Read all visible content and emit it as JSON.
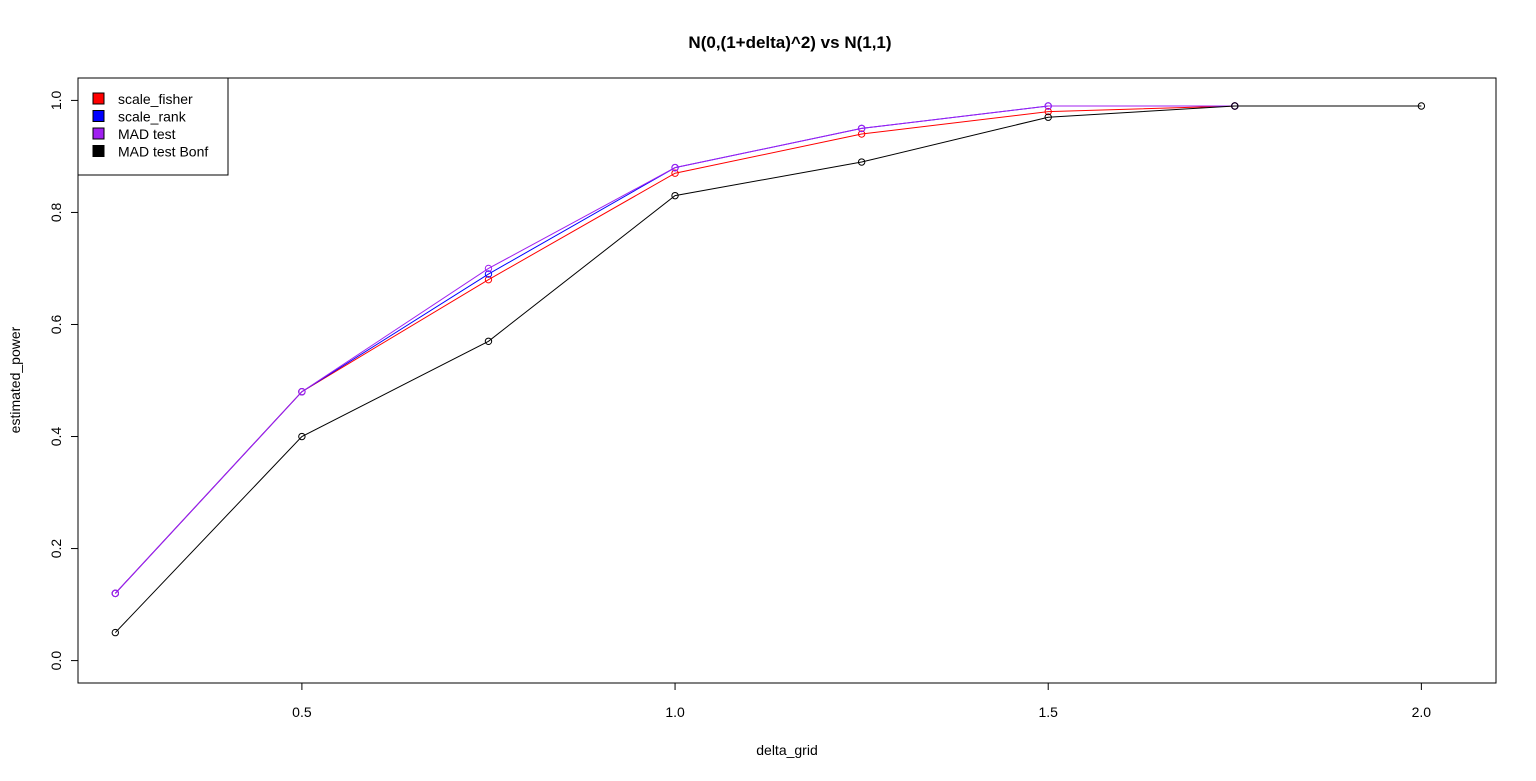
{
  "chart_data": {
    "type": "line",
    "title": "N(0,(1+delta)^2) vs N(1,1)",
    "xlabel": "delta_grid",
    "ylabel": "estimated_power",
    "xlim": [
      0.2,
      2.1
    ],
    "ylim": [
      -0.04,
      1.04
    ],
    "xticks": [
      0.5,
      1.0,
      1.5,
      2.0
    ],
    "xtick_labels": [
      "0.5",
      "1.0",
      "1.5",
      "2.0"
    ],
    "yticks": [
      0.0,
      0.2,
      0.4,
      0.6,
      0.8,
      1.0
    ],
    "ytick_labels": [
      "0.0",
      "0.2",
      "0.4",
      "0.6",
      "0.8",
      "1.0"
    ],
    "grid": false,
    "legend_position": "top-left",
    "markers": "open-circle",
    "series": [
      {
        "name": "scale_fisher",
        "color": "#ff0000",
        "x": [
          0.25,
          0.5,
          0.75,
          1.0,
          1.25,
          1.5,
          1.75
        ],
        "values": [
          0.12,
          0.48,
          0.68,
          0.87,
          0.94,
          0.98,
          0.99
        ]
      },
      {
        "name": "scale_rank",
        "color": "#0000ff",
        "x": [
          0.25,
          0.5,
          0.75,
          1.0,
          1.25,
          1.5,
          1.75
        ],
        "values": [
          0.12,
          0.48,
          0.69,
          0.88,
          0.95,
          0.99,
          0.99
        ]
      },
      {
        "name": "MAD test",
        "color": "#a020f0",
        "x": [
          0.25,
          0.5,
          0.75,
          1.0,
          1.25,
          1.5,
          1.75
        ],
        "values": [
          0.12,
          0.48,
          0.7,
          0.88,
          0.95,
          0.99,
          0.99
        ]
      },
      {
        "name": "MAD test Bonf",
        "color": "#000000",
        "x": [
          0.25,
          0.5,
          0.75,
          1.0,
          1.25,
          1.5,
          1.75,
          2.0
        ],
        "values": [
          0.05,
          0.4,
          0.57,
          0.83,
          0.89,
          0.97,
          0.99,
          0.99
        ]
      }
    ]
  }
}
